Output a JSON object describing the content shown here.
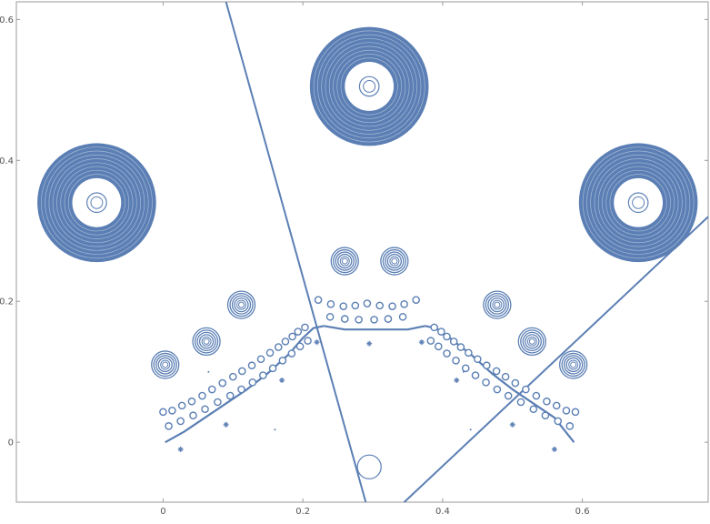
{
  "chart_data": {
    "type": "scatter",
    "title": "",
    "xlabel": "",
    "ylabel": "",
    "xlim": [
      -0.21,
      0.78
    ],
    "ylim": [
      -0.085,
      0.625
    ],
    "x_ticks": [
      0,
      0.2,
      0.4,
      0.6
    ],
    "x_tick_labels": [
      "0",
      "0.2",
      "0.4",
      "0.6"
    ],
    "y_ticks": [
      0,
      0.2,
      0.4,
      0.6
    ],
    "y_tick_labels": [
      "0",
      "0.2",
      "0.4",
      "0.6"
    ],
    "grid": false,
    "color": "#5b7fb4",
    "lines": [
      {
        "name": "",
        "x": [
          0.09,
          0.29
        ],
        "y": [
          0.625,
          -0.085
        ]
      },
      {
        "name": "",
        "x": [
          0.345,
          0.78
        ],
        "y": [
          -0.085,
          0.32
        ]
      }
    ],
    "large_rings": [
      {
        "cx": -0.095,
        "cy": 0.34,
        "outer_r": 0.085,
        "inner_r": 0.035
      },
      {
        "cx": 0.295,
        "cy": 0.505,
        "outer_r": 0.085,
        "inner_r": 0.035
      },
      {
        "cx": 0.68,
        "cy": 0.34,
        "outer_r": 0.085,
        "inner_r": 0.035
      }
    ],
    "medium_rings": [
      {
        "cx": 0.003,
        "cy": 0.11
      },
      {
        "cx": 0.062,
        "cy": 0.143
      },
      {
        "cx": 0.112,
        "cy": 0.195
      },
      {
        "cx": 0.26,
        "cy": 0.257
      },
      {
        "cx": 0.331,
        "cy": 0.257
      },
      {
        "cx": 0.478,
        "cy": 0.195
      },
      {
        "cx": 0.528,
        "cy": 0.143
      },
      {
        "cx": 0.587,
        "cy": 0.11
      }
    ],
    "small_circle": {
      "cx": 0.295,
      "cy": -0.035,
      "r": 0.017
    },
    "left_curve": {
      "x": [
        0.003,
        0.03,
        0.06,
        0.09,
        0.12,
        0.15,
        0.18,
        0.2,
        0.215,
        0.23
      ],
      "y": [
        0.0,
        0.015,
        0.035,
        0.055,
        0.075,
        0.098,
        0.125,
        0.148,
        0.162,
        0.165
      ]
    },
    "center_curve": {
      "x": [
        0.23,
        0.26,
        0.29,
        0.32,
        0.35,
        0.375
      ],
      "y": [
        0.165,
        0.16,
        0.16,
        0.16,
        0.16,
        0.165
      ]
    },
    "right_curve": {
      "x": [
        0.375,
        0.39,
        0.41,
        0.44,
        0.47,
        0.5,
        0.53,
        0.56,
        0.588
      ],
      "y": [
        0.165,
        0.162,
        0.148,
        0.125,
        0.098,
        0.075,
        0.055,
        0.035,
        0.0
      ]
    },
    "dot_rows": [
      {
        "x": [
          0.0,
          0.013,
          0.027,
          0.041,
          0.056,
          0.07,
          0.085,
          0.1,
          0.113,
          0.127,
          0.14,
          0.153,
          0.165,
          0.175,
          0.185,
          0.193,
          0.203
        ],
        "y": [
          0.043,
          0.045,
          0.052,
          0.058,
          0.066,
          0.075,
          0.084,
          0.093,
          0.101,
          0.109,
          0.118,
          0.127,
          0.135,
          0.143,
          0.15,
          0.157,
          0.163
        ]
      },
      {
        "x": [
          0.008,
          0.025,
          0.043,
          0.06,
          0.078,
          0.096,
          0.112,
          0.128,
          0.143,
          0.157,
          0.171,
          0.184,
          0.196,
          0.207
        ],
        "y": [
          0.023,
          0.03,
          0.038,
          0.047,
          0.057,
          0.066,
          0.075,
          0.085,
          0.095,
          0.105,
          0.116,
          0.126,
          0.136,
          0.144
        ]
      },
      {
        "x": [
          0.222,
          0.24,
          0.258,
          0.275,
          0.292,
          0.31,
          0.328,
          0.345,
          0.362
        ],
        "y": [
          0.202,
          0.196,
          0.193,
          0.194,
          0.197,
          0.194,
          0.193,
          0.196,
          0.202
        ]
      },
      {
        "x": [
          0.239,
          0.26,
          0.28,
          0.302,
          0.322,
          0.343
        ],
        "y": [
          0.178,
          0.175,
          0.174,
          0.174,
          0.175,
          0.178
        ]
      },
      {
        "x": [
          0.388,
          0.398,
          0.406,
          0.416,
          0.426,
          0.437,
          0.45,
          0.463,
          0.477,
          0.49,
          0.504,
          0.519,
          0.534,
          0.549,
          0.563,
          0.577,
          0.59
        ],
        "y": [
          0.163,
          0.157,
          0.15,
          0.143,
          0.135,
          0.127,
          0.118,
          0.109,
          0.101,
          0.093,
          0.084,
          0.075,
          0.066,
          0.058,
          0.052,
          0.045,
          0.043
        ]
      },
      {
        "x": [
          0.383,
          0.394,
          0.406,
          0.419,
          0.433,
          0.447,
          0.462,
          0.478,
          0.494,
          0.512,
          0.53,
          0.547,
          0.565,
          0.582
        ],
        "y": [
          0.144,
          0.136,
          0.126,
          0.116,
          0.105,
          0.095,
          0.085,
          0.075,
          0.066,
          0.057,
          0.047,
          0.038,
          0.03,
          0.023
        ]
      }
    ],
    "star_points": {
      "x": [
        0.025,
        0.09,
        0.17,
        0.22,
        0.295,
        0.37,
        0.42,
        0.5,
        0.56
      ],
      "y": [
        -0.01,
        0.025,
        0.088,
        0.142,
        0.14,
        0.142,
        0.088,
        0.025,
        -0.01
      ]
    },
    "tiny_points": {
      "x": [
        0.16,
        0.44,
        0.43,
        0.065
      ],
      "y": [
        0.018,
        0.018,
        0.1,
        0.1
      ]
    }
  }
}
